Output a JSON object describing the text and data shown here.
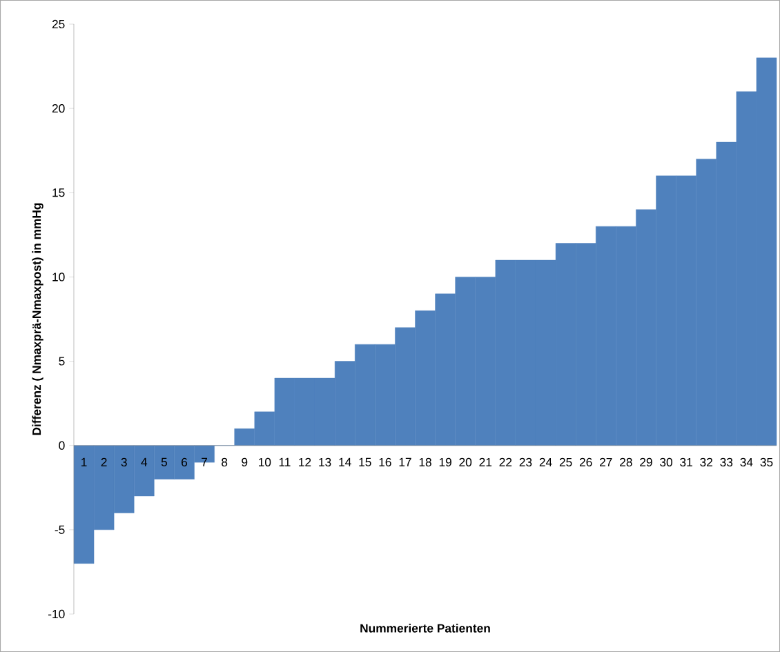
{
  "chart_data": {
    "type": "bar",
    "xlabel": "Nummerierte Patienten",
    "ylabel": "Differenz ( Nmaxprä-Nmaxpost) in mmHg",
    "categories": [
      "1",
      "2",
      "3",
      "4",
      "5",
      "6",
      "7",
      "8",
      "9",
      "10",
      "11",
      "12",
      "13",
      "14",
      "15",
      "16",
      "17",
      "18",
      "19",
      "20",
      "21",
      "22",
      "23",
      "24",
      "25",
      "26",
      "27",
      "28",
      "29",
      "30",
      "31",
      "32",
      "33",
      "34",
      "35"
    ],
    "values": [
      -7,
      -5,
      -4,
      -3,
      -2,
      -2,
      -1,
      0,
      1,
      2,
      4,
      4,
      4,
      5,
      6,
      6,
      7,
      8,
      9,
      10,
      10,
      11,
      11,
      11,
      12,
      12,
      13,
      13,
      14,
      16,
      16,
      17,
      18,
      21,
      23
    ],
    "color": "#4f81bd",
    "ylim": [
      -10,
      25
    ],
    "yticks": [
      -10,
      -5,
      0,
      5,
      10,
      15,
      20,
      25
    ]
  }
}
